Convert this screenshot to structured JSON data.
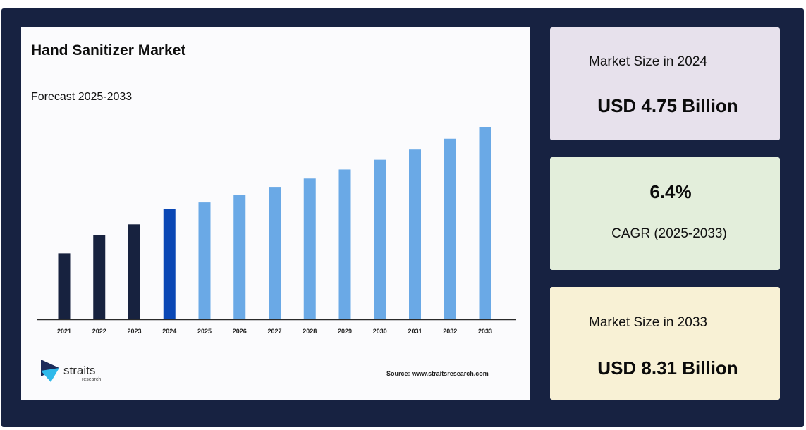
{
  "chart_data": {
    "type": "bar",
    "title": "Hand Sanitizer Market",
    "subtitle": "Forecast 2025-2033",
    "categories": [
      "2021",
      "2022",
      "2023",
      "2024",
      "2025",
      "2026",
      "2027",
      "2028",
      "2029",
      "2030",
      "2031",
      "2032",
      "2033"
    ],
    "values": [
      2.85,
      3.63,
      4.1,
      4.75,
      5.05,
      5.37,
      5.72,
      6.08,
      6.47,
      6.89,
      7.33,
      7.8,
      8.31
    ],
    "ylim": [
      0,
      8.31
    ],
    "grid": false,
    "colors": {
      "historical": "#17223f",
      "base_year": "#0a47b5",
      "forecast": "#6aa9e6"
    }
  },
  "brand": {
    "name": "straits",
    "tagline": "research",
    "source": "Source: www.straitsresearch.com"
  },
  "stats": {
    "market_2024": {
      "label": "Market Size in 2024",
      "value": "USD 4.75 Billion"
    },
    "cagr": {
      "value": "6.4%",
      "label": "CAGR (2025-2033)"
    },
    "market_2033": {
      "label": "Market Size in 2033",
      "value": "USD 8.31 Billion"
    }
  }
}
